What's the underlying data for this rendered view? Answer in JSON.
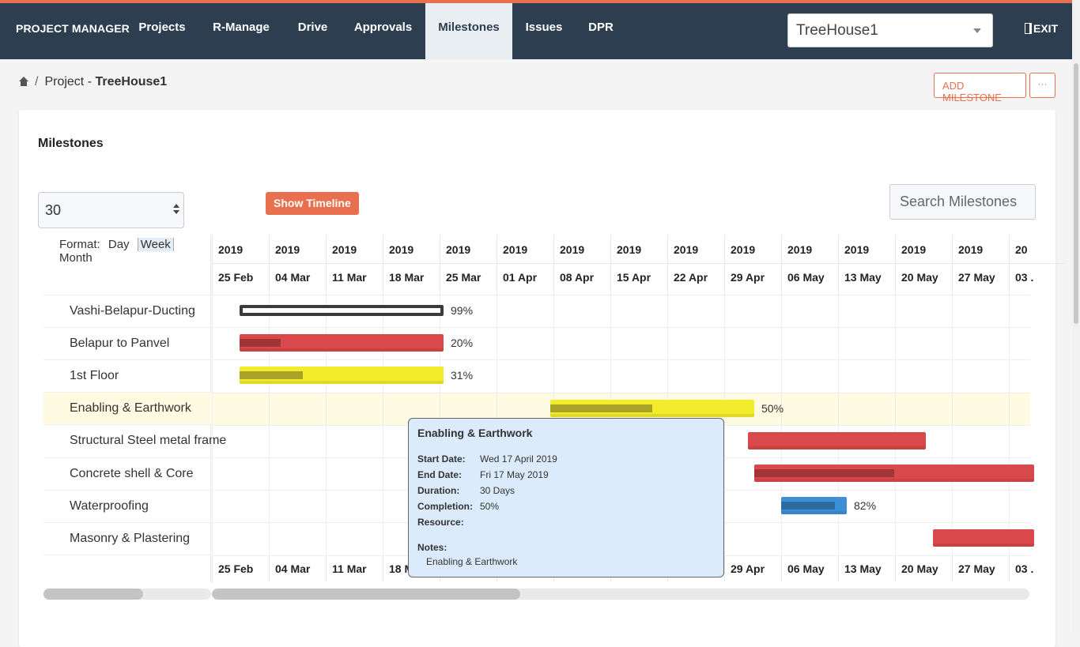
{
  "nav": {
    "brand": "PROJECT MANAGER",
    "items": [
      "Projects",
      "R-Manage",
      "Drive",
      "Approvals",
      "Milestones",
      "Issues",
      "DPR"
    ],
    "active": "Milestones",
    "project_select": "TreeHouse1",
    "exit": "EXIT"
  },
  "breadcrumb": {
    "prefix": "Project -",
    "project": "TreeHouse1"
  },
  "actions": {
    "add_milestone": "ADD MILESTONE",
    "more": "···"
  },
  "milestones": {
    "title": "Milestones",
    "page_size": "30",
    "show_timeline": "Show Timeline",
    "search_placeholder": "Search Milestones",
    "format": {
      "label": "Format:",
      "options": [
        "Day",
        "Week",
        "Month"
      ],
      "selected": "Week"
    }
  },
  "gantt": {
    "years": [
      "2019",
      "2019",
      "2019",
      "2019",
      "2019",
      "2019",
      "2019",
      "2019",
      "2019",
      "2019",
      "2019",
      "2019",
      "2019",
      "2019",
      "20"
    ],
    "weeks": [
      "25 Feb",
      "04 Mar",
      "11 Mar",
      "18 Mar",
      "25 Mar",
      "01 Apr",
      "08 Apr",
      "15 Apr",
      "22 Apr",
      "29 Apr",
      "06 May",
      "13 May",
      "20 May",
      "27 May",
      "03 ."
    ],
    "tasks": [
      {
        "name": "Vashi-Belapur-Ducting",
        "completion": 0.99,
        "pct_label": "99%",
        "color": "#3a3a3a",
        "fill_color": "#3a3a3a"
      },
      {
        "name": "Belapur to Panvel",
        "completion": 0.2,
        "pct_label": "20%",
        "color": "#d9484a",
        "fill_color": "#8e2d2f"
      },
      {
        "name": "1st Floor",
        "completion": 0.31,
        "pct_label": "31%",
        "color": "#f2ec2d",
        "fill_color": "#8f8a24"
      },
      {
        "name": "Enabling & Earthwork",
        "completion": 0.5,
        "pct_label": "50%",
        "color": "#f2ec2d",
        "fill_color": "#8f8a24"
      },
      {
        "name": "Structural Steel metal frame",
        "completion": 0,
        "pct_label": "",
        "color": "#d9484a",
        "fill_color": "#8e2d2f"
      },
      {
        "name": "Concrete shell & Core",
        "completion": 0.5,
        "pct_label": "",
        "color": "#d9484a",
        "fill_color": "#8e2d2f"
      },
      {
        "name": "Waterproofing",
        "completion": 0.82,
        "pct_label": "82%",
        "color": "#3d8fd6",
        "fill_color": "#2a5d8a"
      },
      {
        "name": "Masonry & Plastering",
        "completion": 0,
        "pct_label": "",
        "color": "#d9484a",
        "fill_color": "#8e2d2f"
      }
    ],
    "highlighted": "Enabling & Earthwork"
  },
  "tooltip": {
    "title": "Enabling & Earthwork",
    "start_label": "Start Date:",
    "start": "Wed 17 April 2019",
    "end_label": "End Date:",
    "end": "Fri 17 May 2019",
    "duration_label": "Duration:",
    "duration": "30 Days",
    "completion_label": "Completion:",
    "completion": "50%",
    "resource_label": "Resource:",
    "resource": "",
    "notes_label": "Notes:",
    "notes": "Enabling & Earthwork"
  }
}
